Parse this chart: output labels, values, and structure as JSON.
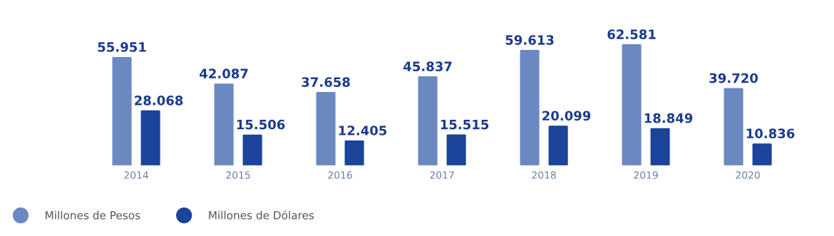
{
  "chart_data": {
    "type": "bar",
    "categories": [
      "2014",
      "2015",
      "2016",
      "2017",
      "2018",
      "2019",
      "2020"
    ],
    "series": [
      {
        "name": "Millones de Pesos",
        "color": "#6b88c1",
        "values": [
          55951,
          42087,
          37658,
          45837,
          59613,
          62581,
          39720
        ],
        "value_labels": [
          "55.951",
          "42.087",
          "37.658",
          "45.837",
          "59.613",
          "62.581",
          "39.720"
        ]
      },
      {
        "name": "Millones de Dólares",
        "color": "#1b449a",
        "values": [
          28068,
          15506,
          12405,
          15515,
          20099,
          18849,
          10836
        ],
        "value_labels": [
          "28.068",
          "15.506",
          "12.405",
          "15.515",
          "20.099",
          "18.849",
          "10.836"
        ]
      }
    ],
    "legend": "bottom left",
    "grid": false
  }
}
